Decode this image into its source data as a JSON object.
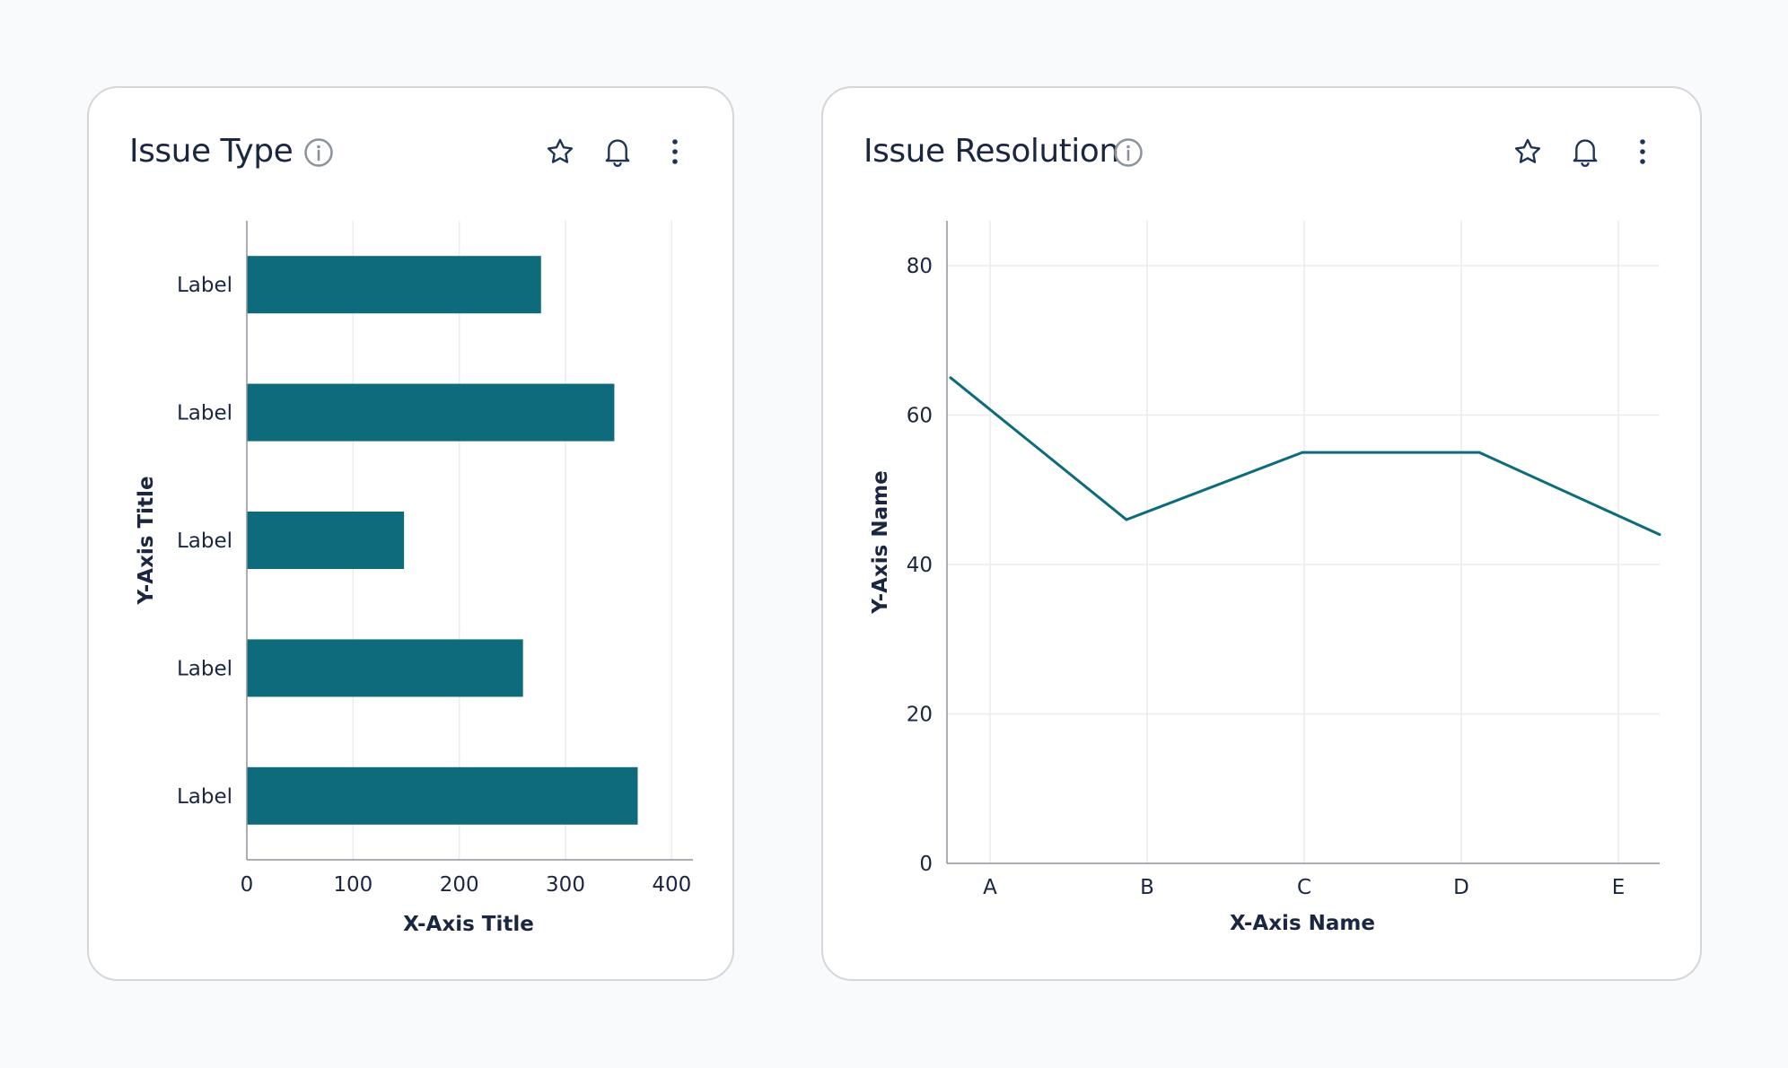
{
  "cards": [
    {
      "title": "Issue Type",
      "actions": {
        "info": "info-icon",
        "favorite": "star-icon",
        "notify": "bell-icon",
        "more": "more-vertical-icon"
      }
    },
    {
      "title": "Issue Resolution",
      "actions": {
        "info": "info-icon",
        "favorite": "star-icon",
        "notify": "bell-icon",
        "more": "more-vertical-icon"
      }
    }
  ],
  "colors": {
    "background": "#f9fafc",
    "series": "#0e6b7b",
    "grid": "#ececef",
    "axis": "#8e939b",
    "text": "#1b2640",
    "icon": "#1f3356",
    "info_icon": "#8c929b"
  },
  "chart_data": [
    {
      "type": "bar",
      "orientation": "horizontal",
      "title": "Issue Type",
      "categories": [
        "Label",
        "Label",
        "Label",
        "Label",
        "Label"
      ],
      "values": [
        277,
        346,
        148,
        260,
        368
      ],
      "xlabel": "X-Axis Title",
      "ylabel": "Y-Axis Title",
      "xlim": [
        0,
        420
      ],
      "xticks": [
        0,
        100,
        200,
        300,
        400
      ],
      "grid": "vertical"
    },
    {
      "type": "line",
      "title": "Issue Resolution",
      "x": [
        "A",
        "B",
        "C",
        "D",
        "E"
      ],
      "y": [
        65,
        46,
        55,
        55,
        44
      ],
      "xlabel": "X-Axis Name",
      "ylabel": "Y-Axis Name",
      "ylim": [
        0,
        86
      ],
      "yticks": [
        0,
        20,
        40,
        60,
        80
      ],
      "grid": "both"
    }
  ]
}
